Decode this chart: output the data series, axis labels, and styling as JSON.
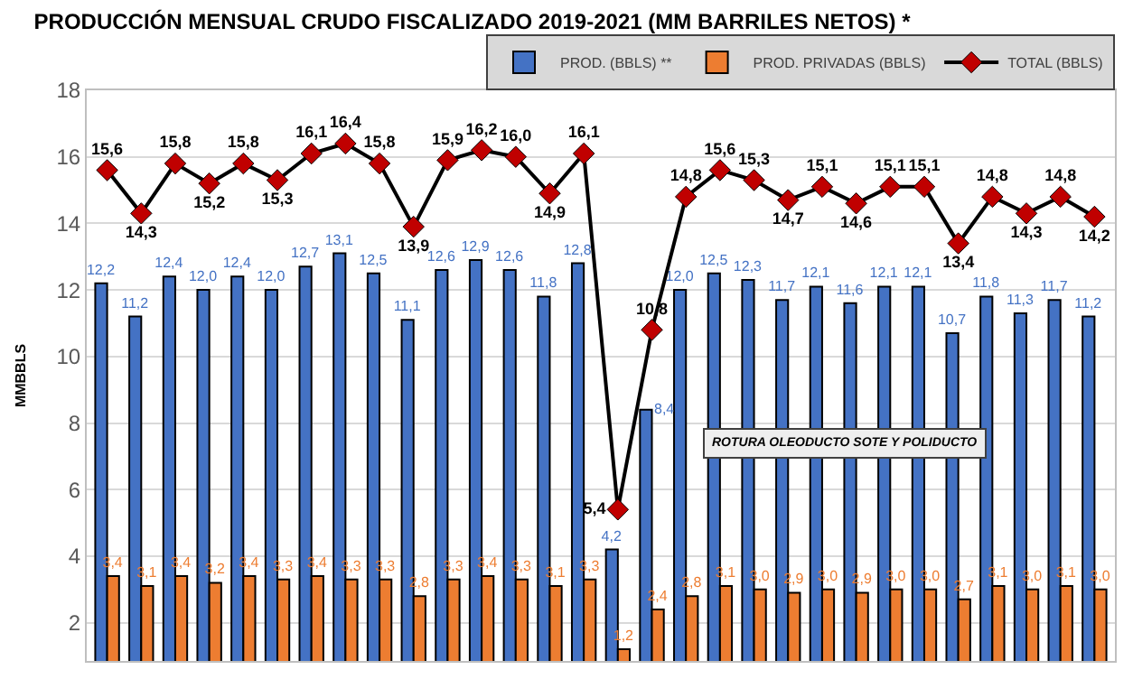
{
  "chart_data": {
    "type": "bar",
    "title": "PRODUCCIÓN MENSUAL CRUDO FISCALIZADO 2019-2021 (MM BARRILES NETOS) *",
    "ylabel": "MMBBLS",
    "categories": [
      null,
      null,
      null,
      null,
      null,
      null,
      null,
      null,
      null,
      null,
      null,
      null,
      null,
      null,
      null,
      null,
      null,
      null,
      null,
      null,
      null,
      null,
      null,
      null,
      null,
      null,
      null,
      null,
      null,
      null
    ],
    "series": [
      {
        "name": "PROD. (BBLS) **",
        "color": "#4472c4",
        "values": [
          12.2,
          11.2,
          12.4,
          12.0,
          12.4,
          12.0,
          12.7,
          13.1,
          12.5,
          11.1,
          12.6,
          12.9,
          12.6,
          11.8,
          12.8,
          4.2,
          8.4,
          12.0,
          12.5,
          12.3,
          11.7,
          12.1,
          11.6,
          12.1,
          12.1,
          10.7,
          11.8,
          11.3,
          11.7,
          11.2
        ],
        "value_labels": [
          "12,2",
          "11,2",
          "12,4",
          "12,0",
          "12,4",
          "12,0",
          "12,7",
          "13,1",
          "12,5",
          "11,1",
          "12,6",
          "12,9",
          "12,6",
          "11,8",
          "12,8",
          "4,2",
          "8,4",
          "12,0",
          "12,5",
          "12,3",
          "11,7",
          "12,1",
          "11,6",
          "12,1",
          "12,1",
          "10,7",
          "11,8",
          "11,3",
          "11,7",
          "11,2"
        ]
      },
      {
        "name": "PROD. PRIVADAS (BBLS)",
        "color": "#ed7d31",
        "values": [
          3.4,
          3.1,
          3.4,
          3.2,
          3.4,
          3.3,
          3.4,
          3.3,
          3.3,
          2.8,
          3.3,
          3.4,
          3.3,
          3.1,
          3.3,
          1.2,
          2.4,
          2.8,
          3.1,
          3.0,
          2.9,
          3.0,
          2.9,
          3.0,
          3.0,
          2.7,
          3.1,
          3.0,
          3.1,
          3.0
        ],
        "value_labels": [
          "3,4",
          "3,1",
          "3,4",
          "3,2",
          "3,4",
          "3,3",
          "3,4",
          "3,3",
          "3,3",
          "2,8",
          "3,3",
          "3,4",
          "3,3",
          "3,1",
          "3,3",
          "1,2",
          "2,4",
          "2,8",
          "3,1",
          "3,0",
          "2,9",
          "3,0",
          "2,9",
          "3,0",
          "3,0",
          "2,7",
          "3,1",
          "3,0",
          "3,1",
          "3,0"
        ]
      },
      {
        "name": "TOTAL (BBLS)",
        "type": "line",
        "color": "#000000",
        "marker": "diamond",
        "values": [
          15.6,
          14.3,
          15.8,
          15.2,
          15.8,
          15.3,
          16.1,
          16.4,
          15.8,
          13.9,
          15.9,
          16.2,
          16.0,
          14.9,
          16.1,
          5.4,
          10.8,
          14.8,
          15.6,
          15.3,
          14.7,
          15.1,
          14.6,
          15.1,
          15.1,
          13.4,
          14.8,
          14.3,
          14.8,
          14.2
        ],
        "value_labels": [
          "15,6",
          "14,3",
          "15,8",
          "15,2",
          "15,8",
          "15,3",
          "16,1",
          "16,4",
          "15,8",
          "13,9",
          "15,9",
          "16,2",
          "16,0",
          "14,9",
          "16,1",
          "5,4",
          "10,8",
          "14,8",
          "15,6",
          "15,3",
          "14,7",
          "15,1",
          "14,6",
          "15,1",
          "15,1",
          "13,4",
          "14,8",
          "14,3",
          "14,8",
          "14,2"
        ]
      }
    ],
    "annotations": [
      "ROTURA OLEODUCTO SOTE Y POLIDUCTO"
    ],
    "ylim": [
      0.85,
      18
    ],
    "yticks": [
      2,
      4,
      6,
      8,
      10,
      12,
      14,
      16,
      18
    ],
    "grid": "y",
    "legend": "top right",
    "tick_labels": "y"
  }
}
